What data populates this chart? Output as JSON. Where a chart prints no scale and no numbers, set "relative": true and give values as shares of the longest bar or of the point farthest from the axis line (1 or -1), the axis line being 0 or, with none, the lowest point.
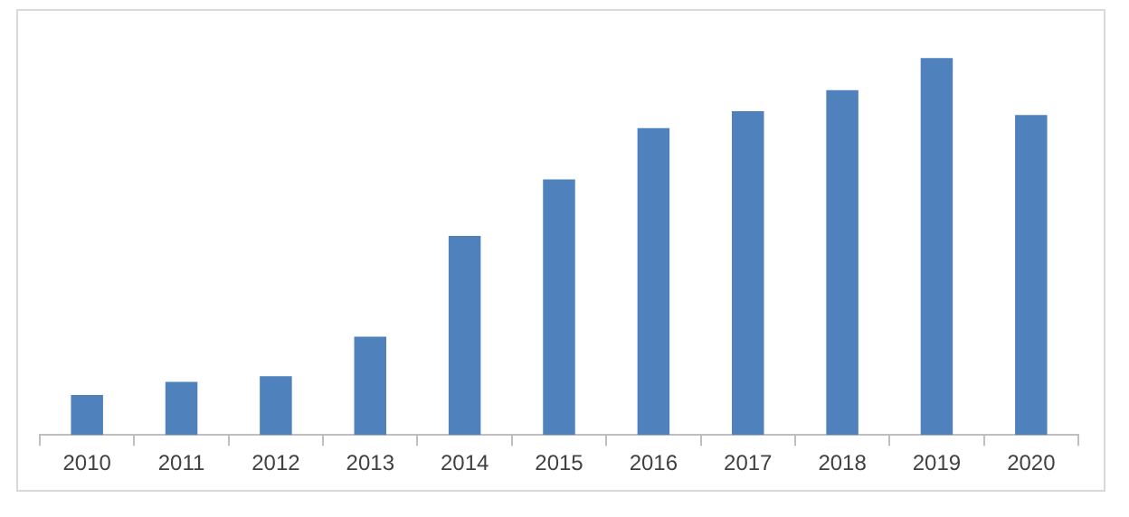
{
  "chart_data": {
    "type": "bar",
    "relative": true,
    "categories": [
      "2010",
      "2011",
      "2012",
      "2013",
      "2014",
      "2015",
      "2016",
      "2017",
      "2018",
      "2019",
      "2020"
    ],
    "values": [
      0.106,
      0.141,
      0.156,
      0.261,
      0.528,
      0.678,
      0.814,
      0.859,
      0.915,
      1,
      0.849
    ],
    "color": "#4f81bd",
    "legend": false
  }
}
